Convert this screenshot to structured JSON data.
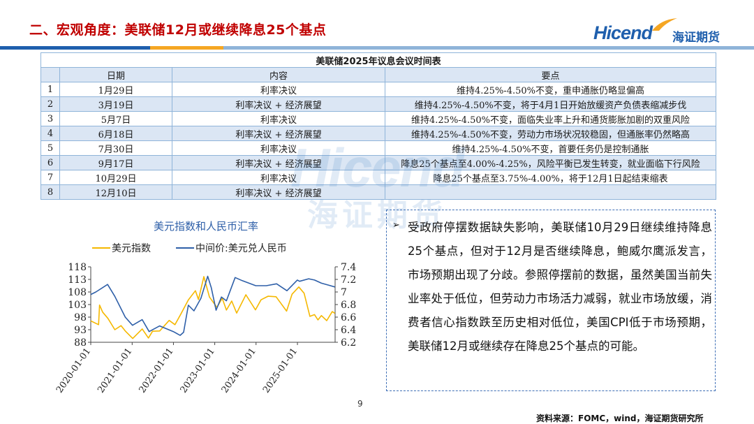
{
  "slide": {
    "title": "二、宏观角度：美联储12月或继续降息25个基点",
    "page_number": "9",
    "source": "资料来源：FOMC，wind，海证期货研究所",
    "logo_latin": "Hicend",
    "logo_cn": "海证期货",
    "watermark_latin": "Hicend",
    "watermark_cn": "海证期货"
  },
  "table": {
    "caption": "美联储2025年议息会议时间表",
    "headers": [
      "日期",
      "内容",
      "要点"
    ],
    "rows": [
      {
        "n": "1",
        "date": "1月29日",
        "content": "利率决议",
        "point": "维持4.25%-4.50%不变，重申通胀仍略显偏高"
      },
      {
        "n": "2",
        "date": "3月19日",
        "content": "利率决议 + 经济展望",
        "point": "维持4.25%-4.50%不变，将于4月1日开始放缓资产负债表缩减步伐"
      },
      {
        "n": "3",
        "date": "5月7日",
        "content": "利率决议",
        "point": "维持4.25%-4.50%不变，面临失业率上升和通货膨胀加剧的双重风险"
      },
      {
        "n": "4",
        "date": "6月18日",
        "content": "利率决议 + 经济展望",
        "point": "维持4.25%-4.50%不变，劳动力市场状况较稳固，但通胀率仍然略高"
      },
      {
        "n": "5",
        "date": "7月30日",
        "content": "利率决议",
        "point": "维持4.25%-4.50%不变，首要任务仍是控制通胀"
      },
      {
        "n": "6",
        "date": "9月17日",
        "content": "利率决议 + 经济展望",
        "point": "降息25个基点至4.00%-4.25%，风险平衡已发生转变，就业面临下行风险"
      },
      {
        "n": "7",
        "date": "10月29日",
        "content": "利率决议",
        "point": "降息25个基点至3.75%-4.00%，将于12月1日起结束缩表"
      },
      {
        "n": "8",
        "date": "12月10日",
        "content": "利率决议 + 经济展望",
        "point": ""
      }
    ]
  },
  "textbox": {
    "arrow": "➢",
    "text": "受政府停摆数据缺失影响，美联储10月29日继续维持降息25个基点，但对于12月是否继续降息，鲍威尔鹰派发言，市场预期出现了分歧。参照停摆前的数据，虽然美国当前失业率处于低位，但劳动力市场活力减弱，就业市场放缓，消费者信心指数跌至历史相对低位，美国CPI低于市场预期，美联储12月或继续存在降息25个基点的可能。"
  },
  "colors": {
    "title": "#c00000",
    "usd": "#f5b800",
    "cny": "#2e5fa8",
    "table_border": "#8fb4d9",
    "table_alt": "#dbe6f4",
    "box_border": "#3e6fb6"
  },
  "chart_data": {
    "type": "line",
    "title": "美元指数和人民币汇率",
    "x_tick_labels": [
      "2020-01-01",
      "2021-01-01",
      "2022-01-01",
      "2023-01-01",
      "2024-01-01",
      "2025-01-01"
    ],
    "xlim": [
      "2020-01-01",
      "2025-11-30"
    ],
    "left_axis": {
      "ylim": [
        88,
        118
      ],
      "ticks": [
        "118",
        "113",
        "108",
        "103",
        "98",
        "93",
        "88"
      ]
    },
    "right_axis": {
      "ylim": [
        6.2,
        7.4
      ],
      "ticks": [
        "7.4",
        "7.2",
        "7",
        "6.8",
        "6.6",
        "6.4",
        "6.2"
      ]
    },
    "legend_position": "top",
    "series": [
      {
        "name": "美元指数",
        "axis": "left",
        "color": "#f5b800",
        "x": [
          "2020-01-01",
          "2020-03-10",
          "2020-03-19",
          "2020-04-15",
          "2020-06-01",
          "2020-08-01",
          "2020-09-25",
          "2020-11-01",
          "2021-01-06",
          "2021-03-31",
          "2021-05-25",
          "2021-06-30",
          "2021-09-01",
          "2021-11-24",
          "2022-01-14",
          "2022-03-07",
          "2022-05-12",
          "2022-07-14",
          "2022-08-10",
          "2022-09-27",
          "2022-11-15",
          "2023-01-20",
          "2023-03-08",
          "2023-04-14",
          "2023-05-31",
          "2023-07-14",
          "2023-10-03",
          "2023-12-27",
          "2024-02-14",
          "2024-04-16",
          "2024-06-26",
          "2024-09-27",
          "2024-11-14",
          "2025-01-13",
          "2025-03-01",
          "2025-04-21",
          "2025-06-01",
          "2025-07-01",
          "2025-08-01",
          "2025-09-17",
          "2025-11-05",
          "2025-11-28"
        ],
        "y": [
          96.5,
          95.0,
          102.8,
          100.0,
          97.5,
          93.0,
          94.6,
          92.5,
          89.5,
          93.3,
          89.7,
          92.4,
          92.5,
          96.7,
          95.0,
          99.2,
          104.8,
          108.5,
          105.0,
          114.1,
          106.0,
          101.9,
          105.5,
          100.8,
          104.4,
          99.6,
          106.9,
          100.9,
          104.9,
          106.3,
          106.1,
          100.4,
          107.1,
          110.0,
          107.5,
          98.3,
          99.0,
          96.9,
          98.6,
          96.6,
          100.2,
          99.5
        ]
      },
      {
        "name": "中间价:美元兑人民币",
        "axis": "right",
        "color": "#2e5fa8",
        "x": [
          "2020-01-01",
          "2020-02-15",
          "2020-05-29",
          "2020-08-01",
          "2020-11-01",
          "2021-01-04",
          "2021-03-31",
          "2021-05-31",
          "2021-09-01",
          "2021-12-31",
          "2022-03-01",
          "2022-04-01",
          "2022-05-13",
          "2022-07-01",
          "2022-09-01",
          "2022-10-31",
          "2022-12-01",
          "2023-01-13",
          "2023-03-01",
          "2023-04-14",
          "2023-06-30",
          "2023-09-01",
          "2023-12-29",
          "2024-04-01",
          "2024-07-01",
          "2024-09-30",
          "2024-12-31",
          "2025-01-20",
          "2025-04-10",
          "2025-06-01",
          "2025-08-01",
          "2025-10-01",
          "2025-11-28"
        ],
        "y": [
          6.96,
          7.0,
          7.12,
          6.93,
          6.6,
          6.47,
          6.56,
          6.37,
          6.46,
          6.37,
          6.31,
          6.36,
          6.79,
          6.7,
          6.9,
          7.25,
          7.07,
          6.71,
          6.92,
          6.86,
          7.23,
          7.18,
          7.1,
          7.1,
          7.13,
          7.02,
          7.19,
          7.17,
          7.21,
          7.19,
          7.14,
          7.11,
          7.08
        ]
      }
    ]
  }
}
